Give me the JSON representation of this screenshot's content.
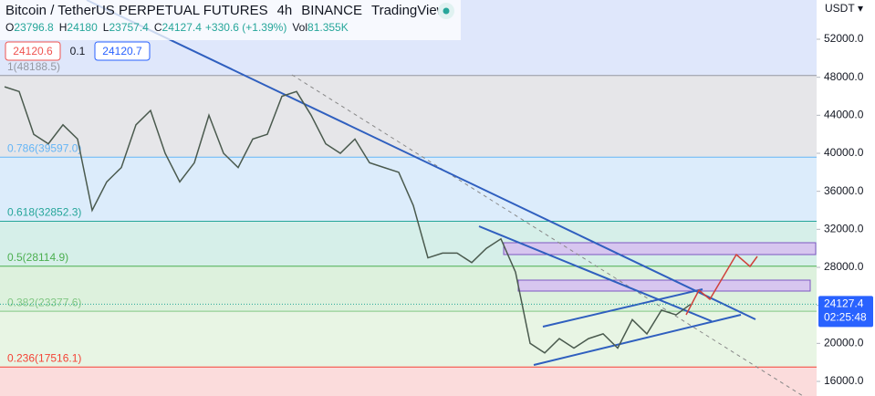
{
  "chart_data": {
    "type": "line",
    "title": "Bitcoin / TetherUS PERPETUAL FUTURES",
    "interval": "4h",
    "exchange": "BINANCE",
    "source": "TradingView",
    "ohlc": [
      {
        "label": "O",
        "value": 23796.8
      },
      {
        "label": "H",
        "value": 24180.0
      },
      {
        "label": "L",
        "value": 23757.4
      },
      {
        "label": "C",
        "value": 24127.4
      }
    ],
    "change": "+330.6 (+1.39%)",
    "volume": {
      "label": "Vol",
      "value": "81.355K"
    },
    "sell_price": 24120.6,
    "spread": 0.1,
    "buy_price": 24120.7,
    "currency": "USDT",
    "last_price": 24127.4,
    "countdown": "02:25:48",
    "ylim": [
      14464,
      56128
    ],
    "yticks": [
      {
        "value": 52000,
        "label": "52000.0"
      },
      {
        "value": 48000,
        "label": "48000.0"
      },
      {
        "value": 44000,
        "label": "44000.0"
      },
      {
        "value": 40000,
        "label": "40000.0"
      },
      {
        "value": 36000,
        "label": "36000.0"
      },
      {
        "value": 32000,
        "label": "32000.0"
      },
      {
        "value": 28000,
        "label": "28000.0"
      },
      {
        "value": 24000,
        "label": "24000.0"
      },
      {
        "value": 20000,
        "label": "20000.0"
      },
      {
        "value": 16000,
        "label": "16000.0"
      }
    ],
    "levels": [
      {
        "label": "1(48188.5)",
        "value": 48188.5,
        "color": "#9598a1"
      },
      {
        "label": "0.786(39597.0)",
        "value": 39597.0,
        "color": "#64b5f6"
      },
      {
        "label": "0.618(32852.3)",
        "value": 32852.3,
        "color": "#26a69a"
      },
      {
        "label": "0.5(28114.9)",
        "value": 28114.9,
        "color": "#4caf50"
      },
      {
        "label": "0.382(23377.6)",
        "value": 23377.6,
        "color": "#81c784"
      },
      {
        "label": "0.236(17516.1)",
        "value": 17516.1,
        "color": "#f44336"
      }
    ],
    "band_colors": [
      "#dfe7fb",
      "#e6e6e9",
      "#dcecfb",
      "#d6efe9",
      "#ddf1dd",
      "#e8f5e4",
      "#fbdcdc"
    ],
    "categories": [
      null,
      null,
      null,
      null,
      null,
      null,
      null,
      null,
      null,
      null,
      null,
      null,
      null,
      null,
      null,
      null,
      null,
      null,
      null,
      null,
      null,
      null,
      null,
      null,
      null,
      null,
      null,
      null,
      null,
      null,
      null,
      null,
      null,
      null,
      null,
      null,
      null,
      null,
      null,
      null,
      null,
      null,
      null,
      null,
      null,
      null,
      null,
      null
    ],
    "series": [
      {
        "color": "#4a5a4e",
        "values": [
          47000,
          46500,
          42000,
          41000,
          43000,
          41500,
          34000,
          37000,
          38500,
          43000,
          44500,
          40000,
          37000,
          39000,
          44000,
          40000,
          38500,
          41500,
          42000,
          46000,
          46500,
          44000,
          41000,
          40000,
          41500,
          39000,
          38500,
          38000,
          34500,
          29000,
          29500,
          29500,
          28500,
          30000,
          31000,
          27500,
          20000,
          19000,
          20500,
          19500,
          20500,
          21000,
          19500,
          22500,
          21000,
          23500,
          23000,
          24127.4
        ]
      }
    ]
  }
}
